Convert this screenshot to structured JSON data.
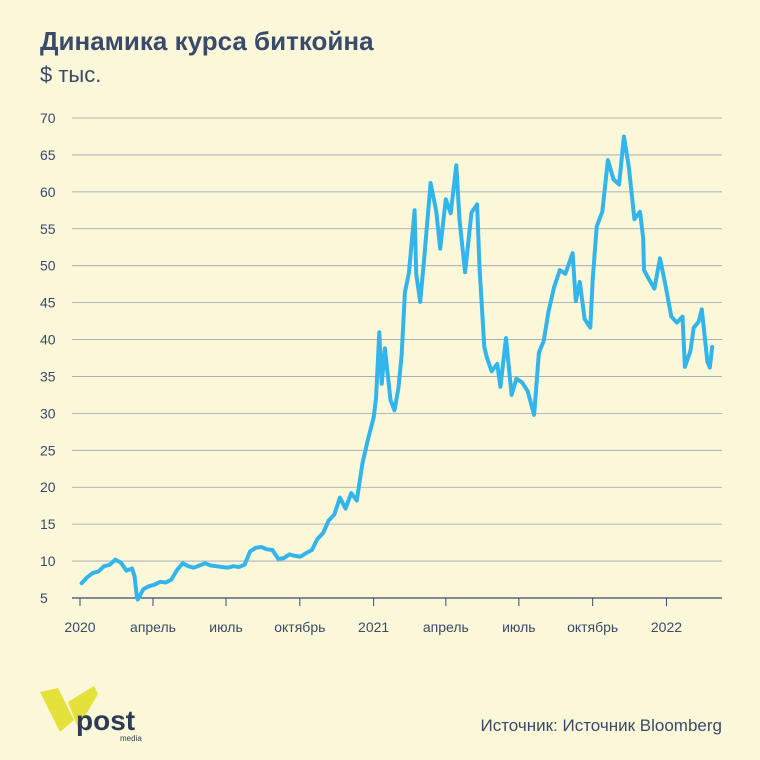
{
  "header": {
    "title": "Динамика курса биткойна",
    "subtitle": "$ тыс."
  },
  "footer": {
    "source": "Источник: Источник Bloomberg",
    "logo_text": "post",
    "logo_subtext": "media"
  },
  "colors": {
    "background": "#fbf7d9",
    "line": "#33b5ec",
    "grid": "#9aa3b5",
    "text": "#3a4a6b",
    "logo_yellow": "#e3e13a"
  },
  "chart_data": {
    "type": "line",
    "title": "Динамика курса биткойна",
    "ylabel": "$ тыс.",
    "xlabel": "",
    "ylim": [
      5,
      70
    ],
    "yticks": [
      5,
      10,
      15,
      20,
      25,
      30,
      35,
      40,
      45,
      50,
      55,
      60,
      65,
      70
    ],
    "xlim": [
      "2020-01-01",
      "2022-02-28"
    ],
    "xticks": [
      {
        "date": "2020-01-01",
        "label": "2020"
      },
      {
        "date": "2020-04-01",
        "label": "апрель"
      },
      {
        "date": "2020-07-01",
        "label": "июль"
      },
      {
        "date": "2020-10-01",
        "label": "октябрь"
      },
      {
        "date": "2021-01-01",
        "label": "2021"
      },
      {
        "date": "2021-04-01",
        "label": "апрель"
      },
      {
        "date": "2021-07-01",
        "label": "июль"
      },
      {
        "date": "2021-10-01",
        "label": "октябрь"
      },
      {
        "date": "2022-01-01",
        "label": "2022"
      }
    ],
    "grid": true,
    "series": [
      {
        "x": [
          "2020-01-03",
          "2020-01-10",
          "2020-01-17",
          "2020-01-24",
          "2020-01-31",
          "2020-02-07",
          "2020-02-14",
          "2020-02-21",
          "2020-02-28",
          "2020-03-06",
          "2020-03-09",
          "2020-03-12",
          "2020-03-13",
          "2020-03-20",
          "2020-03-27",
          "2020-04-03",
          "2020-04-10",
          "2020-04-17",
          "2020-04-24",
          "2020-05-01",
          "2020-05-08",
          "2020-05-15",
          "2020-05-22",
          "2020-05-29",
          "2020-06-05",
          "2020-06-12",
          "2020-06-19",
          "2020-06-26",
          "2020-07-03",
          "2020-07-10",
          "2020-07-17",
          "2020-07-24",
          "2020-07-31",
          "2020-08-07",
          "2020-08-14",
          "2020-08-21",
          "2020-08-28",
          "2020-09-04",
          "2020-09-11",
          "2020-09-18",
          "2020-09-25",
          "2020-10-02",
          "2020-10-09",
          "2020-10-16",
          "2020-10-23",
          "2020-10-30",
          "2020-11-06",
          "2020-11-13",
          "2020-11-20",
          "2020-11-27",
          "2020-12-04",
          "2020-12-11",
          "2020-12-18",
          "2020-12-25",
          "2021-01-01",
          "2021-01-04",
          "2021-01-08",
          "2021-01-11",
          "2021-01-15",
          "2021-01-22",
          "2021-01-27",
          "2021-02-01",
          "2021-02-05",
          "2021-02-09",
          "2021-02-14",
          "2021-02-21",
          "2021-02-23",
          "2021-02-28",
          "2021-03-05",
          "2021-03-13",
          "2021-03-20",
          "2021-03-25",
          "2021-04-01",
          "2021-04-07",
          "2021-04-14",
          "2021-04-18",
          "2021-04-25",
          "2021-05-03",
          "2021-05-10",
          "2021-05-13",
          "2021-05-19",
          "2021-05-22",
          "2021-05-28",
          "2021-06-04",
          "2021-06-08",
          "2021-06-15",
          "2021-06-22",
          "2021-06-28",
          "2021-07-05",
          "2021-07-12",
          "2021-07-20",
          "2021-07-26",
          "2021-08-01",
          "2021-08-07",
          "2021-08-14",
          "2021-08-21",
          "2021-08-28",
          "2021-09-06",
          "2021-09-10",
          "2021-09-15",
          "2021-09-21",
          "2021-09-28",
          "2021-10-01",
          "2021-10-06",
          "2021-10-13",
          "2021-10-20",
          "2021-10-27",
          "2021-11-03",
          "2021-11-09",
          "2021-11-15",
          "2021-11-22",
          "2021-11-29",
          "2021-12-03",
          "2021-12-04",
          "2021-12-10",
          "2021-12-17",
          "2021-12-24",
          "2021-12-31",
          "2022-01-07",
          "2022-01-14",
          "2022-01-21",
          "2022-01-24",
          "2022-01-31",
          "2022-02-04",
          "2022-02-10",
          "2022-02-14",
          "2022-02-21",
          "2022-02-24",
          "2022-02-27"
        ],
        "values": [
          7.0,
          7.8,
          8.4,
          8.6,
          9.3,
          9.5,
          10.2,
          9.8,
          8.7,
          9.0,
          7.9,
          5.0,
          4.8,
          6.2,
          6.6,
          6.8,
          7.2,
          7.1,
          7.5,
          8.8,
          9.7,
          9.3,
          9.1,
          9.4,
          9.7,
          9.4,
          9.3,
          9.2,
          9.1,
          9.3,
          9.2,
          9.5,
          11.3,
          11.8,
          11.9,
          11.6,
          11.5,
          10.3,
          10.4,
          10.9,
          10.7,
          10.6,
          11.1,
          11.5,
          13.0,
          13.8,
          15.5,
          16.3,
          18.6,
          17.1,
          19.2,
          18.2,
          23.2,
          26.5,
          29.4,
          32.0,
          41.0,
          34.0,
          38.8,
          31.8,
          30.4,
          33.5,
          38.0,
          46.4,
          49.0,
          57.5,
          48.9,
          45.1,
          51.0,
          61.2,
          57.4,
          52.3,
          59.0,
          57.1,
          63.6,
          56.2,
          49.1,
          57.2,
          58.3,
          49.8,
          39.0,
          37.6,
          35.7,
          36.7,
          33.6,
          40.2,
          32.5,
          34.7,
          34.2,
          33.0,
          29.8,
          38.2,
          39.8,
          43.8,
          47.1,
          49.4,
          48.9,
          51.7,
          45.2,
          47.8,
          42.8,
          41.6,
          48.1,
          55.3,
          57.3,
          64.3,
          61.7,
          61.0,
          67.5,
          63.4,
          56.3,
          57.3,
          53.7,
          49.4,
          48.2,
          46.9,
          51.0,
          47.2,
          43.1,
          42.3,
          43.1,
          36.3,
          38.5,
          41.6,
          42.4,
          44.1,
          37.0,
          36.2,
          39.0
        ]
      }
    ]
  }
}
